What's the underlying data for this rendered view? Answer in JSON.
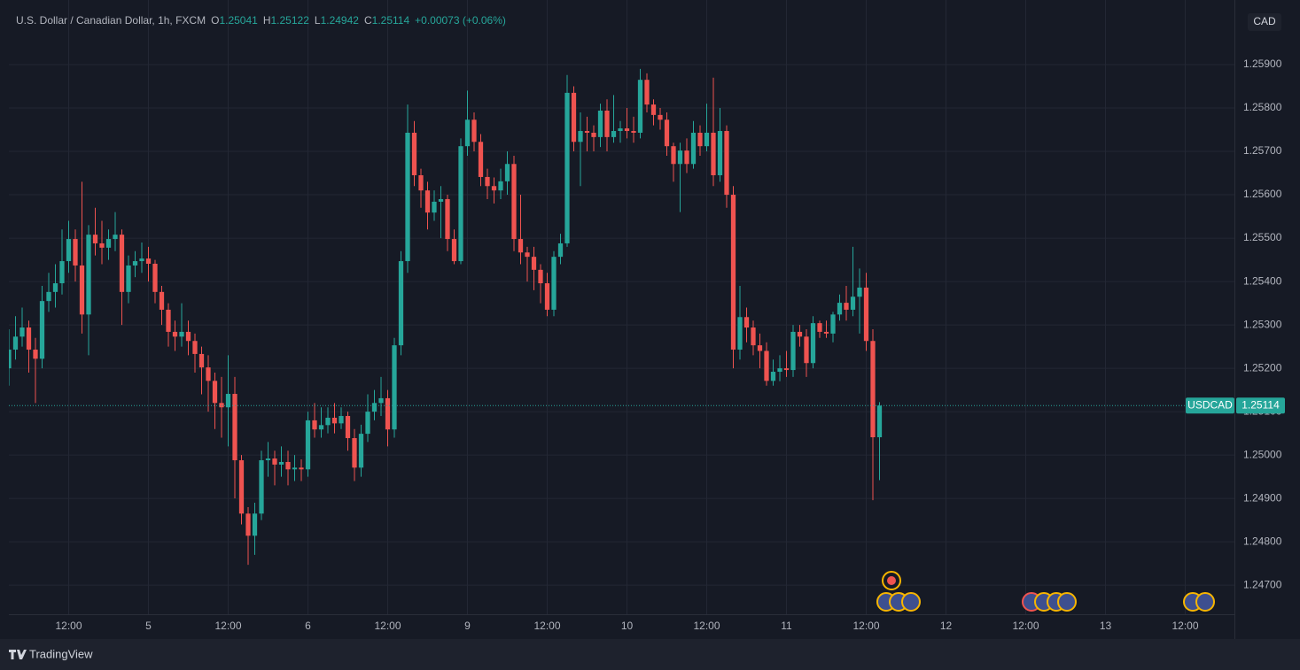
{
  "chart_data": {
    "type": "candlestick",
    "title": "U.S. Dollar / Canadian Dollar, 1h, FXCM",
    "ohlc_labels": [
      "O",
      "H",
      "L",
      "C"
    ],
    "change_label": "+0.00073 (+0.06%)",
    "symbol": "USDCAD",
    "currency": "CAD",
    "up_color": "#26a69a",
    "down_color": "#ef5350",
    "grid": true,
    "open": [
      1.252,
      1.25243,
      1.25273,
      1.25294,
      1.25243,
      1.25222,
      1.25355,
      1.25376,
      1.25396,
      1.25447,
      1.25498,
      1.25437,
      1.25324,
      1.25508,
      1.25488,
      1.25478,
      1.25498,
      1.25508,
      1.25376,
      1.25437,
      1.25447,
      1.25453,
      1.25441,
      1.25376,
      1.25335,
      1.25284,
      1.25273,
      1.25284,
      1.25263,
      1.25233,
      1.25202,
      1.25171,
      1.2512,
      1.2511,
      1.25141,
      1.24988,
      1.24865,
      1.24814,
      1.24865,
      1.24988,
      1.24992,
      1.24978,
      1.24984,
      1.24967,
      1.24971,
      1.24967,
      1.2508,
      1.25059,
      1.25069,
      1.25086,
      1.25073,
      1.2509,
      1.25039,
      1.24971,
      1.25049,
      1.251,
      1.2512,
      1.25131,
      1.25059,
      1.25253,
      1.25447,
      1.25743,
      1.25645,
      1.2561,
      1.25559,
      1.25584,
      1.2559,
      1.25498,
      1.25447,
      1.25712,
      1.25773,
      1.25722,
      1.25641,
      1.2562,
      1.2561,
      1.25631,
      1.25671,
      1.25498,
      1.25467,
      1.25457,
      1.25427,
      1.25396,
      1.25335,
      1.25457,
      1.25488,
      1.25835,
      1.25722,
      1.25747,
      1.25743,
      1.25733,
      1.25794,
      1.25733,
      1.25747,
      1.25753,
      1.25747,
      1.25743,
      1.25865,
      1.25808,
      1.25784,
      1.25773,
      1.25712,
      1.25671,
      1.25702,
      1.25671,
      1.25743,
      1.25712,
      1.25743,
      1.25645,
      1.25747,
      1.256,
      1.25243,
      1.25318,
      1.25294,
      1.25253,
      1.2524,
      1.25171,
      1.25192,
      1.252,
      1.25196,
      1.25284,
      1.25273,
      1.25212,
      1.25304,
      1.25284,
      1.2528,
      1.25324,
      1.25351,
      1.25335,
      1.25365,
      1.25386,
      1.25263,
      1.25041
    ],
    "high": [
      1.2529,
      1.2532,
      1.2534,
      1.2531,
      1.2527,
      1.2539,
      1.2542,
      1.2544,
      1.2552,
      1.2554,
      1.2552,
      1.2563,
      1.2553,
      1.2557,
      1.2554,
      1.2552,
      1.2556,
      1.2552,
      1.2546,
      1.2547,
      1.2549,
      1.2548,
      1.2545,
      1.2539,
      1.2535,
      1.2531,
      1.2535,
      1.2531,
      1.2528,
      1.2525,
      1.2523,
      1.2519,
      1.2518,
      1.2523,
      1.2518,
      1.25,
      1.2488,
      1.2489,
      1.2501,
      1.2503,
      1.2501,
      1.2502,
      1.2501,
      1.25,
      1.2499,
      1.251,
      1.2512,
      1.2511,
      1.2511,
      1.2512,
      1.2511,
      1.251,
      1.2506,
      1.2507,
      1.2514,
      1.2515,
      1.2518,
      1.2515,
      1.2527,
      1.2547,
      1.25808,
      1.2577,
      1.2566,
      1.2563,
      1.2561,
      1.2562,
      1.256,
      1.2552,
      1.2573,
      1.2584,
      1.2579,
      1.2574,
      1.2566,
      1.2564,
      1.2566,
      1.257,
      1.2569,
      1.256,
      1.2548,
      1.2548,
      1.2544,
      1.2542,
      1.2547,
      1.2551,
      1.25876,
      1.2585,
      1.2579,
      1.2578,
      1.2576,
      1.2581,
      1.2582,
      1.2583,
      1.2577,
      1.258,
      1.2578,
      1.2589,
      1.2588,
      1.2582,
      1.258,
      1.2579,
      1.2572,
      1.2572,
      1.2573,
      1.2577,
      1.2576,
      1.2581,
      1.2587,
      1.258,
      1.2576,
      1.2562,
      1.2539,
      1.2534,
      1.2531,
      1.2528,
      1.2526,
      1.2522,
      1.2523,
      1.2524,
      1.253,
      1.253,
      1.2529,
      1.2532,
      1.2531,
      1.2531,
      1.2533,
      1.2537,
      1.2539,
      1.2548,
      1.2543,
      1.2542,
      1.2529,
      1.25122
    ],
    "low": [
      1.2516,
      1.2522,
      1.2525,
      1.2519,
      1.2512,
      1.252,
      1.2533,
      1.2534,
      1.2537,
      1.2542,
      1.254,
      1.2528,
      1.2523,
      1.2546,
      1.2544,
      1.2545,
      1.2547,
      1.253,
      1.2535,
      1.2541,
      1.2542,
      1.254,
      1.2535,
      1.253,
      1.2525,
      1.2524,
      1.2525,
      1.2523,
      1.2519,
      1.2514,
      1.251,
      1.2506,
      1.2504,
      1.2502,
      1.249,
      1.2484,
      1.24747,
      1.2477,
      1.2485,
      1.2495,
      1.2493,
      1.2495,
      1.2493,
      1.2494,
      1.2494,
      1.2495,
      1.2504,
      1.2504,
      1.2505,
      1.2505,
      1.2506,
      1.2501,
      1.2494,
      1.2495,
      1.2503,
      1.2508,
      1.2509,
      1.2502,
      1.2504,
      1.2523,
      1.2542,
      1.2562,
      1.2557,
      1.2552,
      1.2554,
      1.255,
      1.2547,
      1.2544,
      1.2544,
      1.2569,
      1.257,
      1.2562,
      1.2559,
      1.2558,
      1.2559,
      1.256,
      1.2547,
      1.2544,
      1.254,
      1.2538,
      1.2535,
      1.2532,
      1.2532,
      1.2544,
      1.2548,
      1.257,
      1.2562,
      1.257,
      1.257,
      1.2571,
      1.257,
      1.2572,
      1.2572,
      1.2573,
      1.2572,
      1.2573,
      1.2579,
      1.2576,
      1.2575,
      1.2569,
      1.2563,
      1.2556,
      1.2565,
      1.2566,
      1.2569,
      1.257,
      1.2562,
      1.2563,
      1.2557,
      1.252,
      1.2522,
      1.2526,
      1.2523,
      1.252,
      1.2516,
      1.2516,
      1.2517,
      1.2518,
      1.2518,
      1.2525,
      1.2518,
      1.252,
      1.2527,
      1.2527,
      1.2526,
      1.2531,
      1.2531,
      1.2532,
      1.2528,
      1.2524,
      1.24896,
      1.24942
    ],
    "close": [
      1.25243,
      1.25273,
      1.25294,
      1.25243,
      1.25222,
      1.25355,
      1.25376,
      1.25396,
      1.25447,
      1.25498,
      1.25437,
      1.25324,
      1.25508,
      1.25488,
      1.25478,
      1.25498,
      1.25508,
      1.25376,
      1.25437,
      1.25447,
      1.25453,
      1.25441,
      1.25376,
      1.25335,
      1.25284,
      1.25273,
      1.25284,
      1.25263,
      1.25233,
      1.25202,
      1.25171,
      1.2512,
      1.2511,
      1.25141,
      1.24988,
      1.24865,
      1.24814,
      1.24865,
      1.24988,
      1.24992,
      1.24978,
      1.24984,
      1.24967,
      1.24971,
      1.24967,
      1.2508,
      1.25059,
      1.25069,
      1.25086,
      1.25073,
      1.2509,
      1.25039,
      1.24971,
      1.25049,
      1.251,
      1.2512,
      1.25131,
      1.25059,
      1.25253,
      1.25447,
      1.25743,
      1.25645,
      1.2561,
      1.25559,
      1.25584,
      1.2559,
      1.25498,
      1.25447,
      1.25712,
      1.25773,
      1.25722,
      1.25641,
      1.2562,
      1.2561,
      1.25631,
      1.25671,
      1.25498,
      1.25467,
      1.25457,
      1.25427,
      1.25396,
      1.25335,
      1.25457,
      1.25488,
      1.25835,
      1.25722,
      1.25747,
      1.25743,
      1.25733,
      1.25794,
      1.25733,
      1.25747,
      1.25753,
      1.25747,
      1.25743,
      1.25865,
      1.25808,
      1.25784,
      1.25773,
      1.25712,
      1.25671,
      1.25702,
      1.25671,
      1.25743,
      1.25712,
      1.25743,
      1.25645,
      1.25747,
      1.256,
      1.25243,
      1.25318,
      1.25294,
      1.25253,
      1.2524,
      1.25171,
      1.25192,
      1.252,
      1.25196,
      1.25284,
      1.25273,
      1.25212,
      1.25304,
      1.25284,
      1.2528,
      1.25324,
      1.25351,
      1.25335,
      1.25365,
      1.25386,
      1.25263,
      1.25041,
      1.25114
    ],
    "xlim": [
      0,
      184.4
    ],
    "xticks": [
      {
        "value": 9,
        "label": "12:00"
      },
      {
        "value": 21,
        "label": "5"
      },
      {
        "value": 33,
        "label": "12:00"
      },
      {
        "value": 45,
        "label": "6"
      },
      {
        "value": 57,
        "label": "12:00"
      },
      {
        "value": 69,
        "label": "9"
      },
      {
        "value": 81,
        "label": "12:00"
      },
      {
        "value": 93,
        "label": "10"
      },
      {
        "value": 105,
        "label": "12:00"
      },
      {
        "value": 117,
        "label": "11"
      },
      {
        "value": 129,
        "label": "12:00"
      },
      {
        "value": 141,
        "label": "12"
      },
      {
        "value": 153,
        "label": "12:00"
      },
      {
        "value": 165,
        "label": "13"
      },
      {
        "value": 177,
        "label": "12:00"
      }
    ],
    "ylim": [
      1.24633,
      1.26049
    ],
    "yticks": [
      {
        "value": 1.247,
        "label": "1.24700"
      },
      {
        "value": 1.248,
        "label": "1.24800"
      },
      {
        "value": 1.249,
        "label": "1.24900"
      },
      {
        "value": 1.25,
        "label": "1.25000"
      },
      {
        "value": 1.251,
        "label": "1.25100"
      },
      {
        "value": 1.252,
        "label": "1.25200"
      },
      {
        "value": 1.253,
        "label": "1.25300"
      },
      {
        "value": 1.254,
        "label": "1.25400"
      },
      {
        "value": 1.255,
        "label": "1.25500"
      },
      {
        "value": 1.256,
        "label": "1.25600"
      },
      {
        "value": 1.257,
        "label": "1.25700"
      },
      {
        "value": 1.258,
        "label": "1.25800"
      },
      {
        "value": 1.259,
        "label": "1.25900"
      }
    ]
  },
  "brand": "TradingView"
}
